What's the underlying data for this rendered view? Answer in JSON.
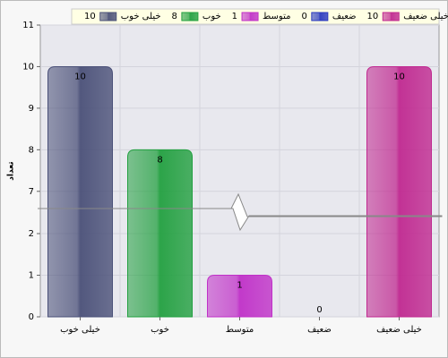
{
  "chart_data": {
    "type": "bar",
    "y_label": "تعداد",
    "categories": [
      "خیلی خوب",
      "خوب",
      "متوسط",
      "ضعیف",
      "خیلی ضعیف"
    ],
    "values": [
      10,
      8,
      1,
      0,
      10
    ],
    "colors": [
      "#4a5078",
      "#22a040",
      "#c030c8",
      "#2838c0",
      "#c02890"
    ],
    "ylim": [
      0,
      11
    ],
    "yticks": [
      0,
      1,
      2,
      7,
      8,
      9,
      10,
      11
    ],
    "axis_break": [
      2.5,
      6.5
    ],
    "grid": true
  }
}
